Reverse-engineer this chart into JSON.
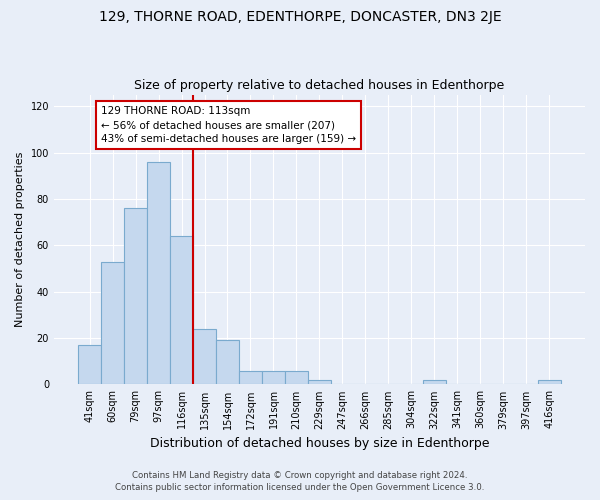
{
  "title": "129, THORNE ROAD, EDENTHORPE, DONCASTER, DN3 2JE",
  "subtitle": "Size of property relative to detached houses in Edenthorpe",
  "xlabel": "Distribution of detached houses by size in Edenthorpe",
  "ylabel": "Number of detached properties",
  "bar_labels": [
    "41sqm",
    "60sqm",
    "79sqm",
    "97sqm",
    "116sqm",
    "135sqm",
    "154sqm",
    "172sqm",
    "191sqm",
    "210sqm",
    "229sqm",
    "247sqm",
    "266sqm",
    "285sqm",
    "304sqm",
    "322sqm",
    "341sqm",
    "360sqm",
    "379sqm",
    "397sqm",
    "416sqm"
  ],
  "bar_values": [
    17,
    53,
    76,
    96,
    64,
    24,
    19,
    6,
    6,
    6,
    2,
    0,
    0,
    0,
    0,
    2,
    0,
    0,
    0,
    0,
    2
  ],
  "bar_color": "#c5d8ee",
  "bar_edge_color": "#7aaace",
  "vline_x_index": 4,
  "vline_color": "#cc0000",
  "annotation_text": "129 THORNE ROAD: 113sqm\n← 56% of detached houses are smaller (207)\n43% of semi-detached houses are larger (159) →",
  "annotation_box_color": "#ffffff",
  "annotation_box_edge": "#cc0000",
  "ylim": [
    0,
    125
  ],
  "yticks": [
    0,
    20,
    40,
    60,
    80,
    100,
    120
  ],
  "footer_line1": "Contains HM Land Registry data © Crown copyright and database right 2024.",
  "footer_line2": "Contains public sector information licensed under the Open Government Licence 3.0.",
  "bg_color": "#e8eef8",
  "plot_bg_color": "#e8eef8",
  "title_fontsize": 10,
  "subtitle_fontsize": 9,
  "grid_color": "#ffffff",
  "tick_label_fontsize": 7,
  "ylabel_fontsize": 8,
  "xlabel_fontsize": 9
}
